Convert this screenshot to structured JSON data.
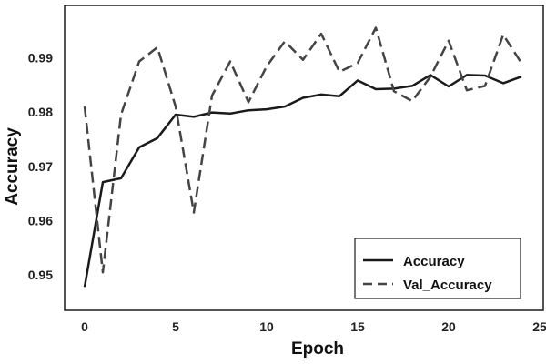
{
  "chart_data": {
    "type": "line",
    "xlabel": "Epoch",
    "ylabel": "Accuracy",
    "xlim": [
      -1.1,
      25.2
    ],
    "ylim": [
      0.9435,
      0.9996
    ],
    "xticks": [
      0,
      5,
      10,
      15,
      20,
      25
    ],
    "yticks": [
      0.95,
      0.96,
      0.97,
      0.98,
      0.99
    ],
    "ytick_labels": [
      "0.95",
      "0.96",
      "0.97",
      "0.98",
      "0.99"
    ],
    "grid": false,
    "legend_position": "lower-right",
    "series": [
      {
        "name": "Accuracy",
        "color": "#1a1a1a",
        "dash": "solid",
        "x": [
          0,
          1,
          2,
          3,
          4,
          5,
          6,
          7,
          8,
          9,
          10,
          11,
          12,
          13,
          14,
          15,
          16,
          17,
          18,
          19,
          20,
          21,
          22,
          23,
          24
        ],
        "values": [
          0.9478,
          0.9671,
          0.9678,
          0.9735,
          0.9752,
          0.9795,
          0.9791,
          0.9799,
          0.9797,
          0.9803,
          0.9805,
          0.981,
          0.9826,
          0.9832,
          0.9829,
          0.9858,
          0.9842,
          0.9843,
          0.9848,
          0.9868,
          0.9847,
          0.9868,
          0.9867,
          0.9853,
          0.9865
        ]
      },
      {
        "name": "Val_Accuracy",
        "color": "#444444",
        "dash": "dashed",
        "x": [
          0,
          1,
          2,
          3,
          4,
          5,
          6,
          7,
          8,
          9,
          10,
          11,
          12,
          13,
          14,
          15,
          16,
          17,
          18,
          19,
          20,
          21,
          22,
          23,
          24
        ],
        "values": [
          0.981,
          0.9505,
          0.9795,
          0.9893,
          0.9919,
          0.981,
          0.9615,
          0.983,
          0.9893,
          0.9818,
          0.9884,
          0.993,
          0.9896,
          0.9944,
          0.9874,
          0.989,
          0.9955,
          0.9838,
          0.982,
          0.9865,
          0.9931,
          0.984,
          0.9848,
          0.9942,
          0.989
        ]
      }
    ]
  }
}
